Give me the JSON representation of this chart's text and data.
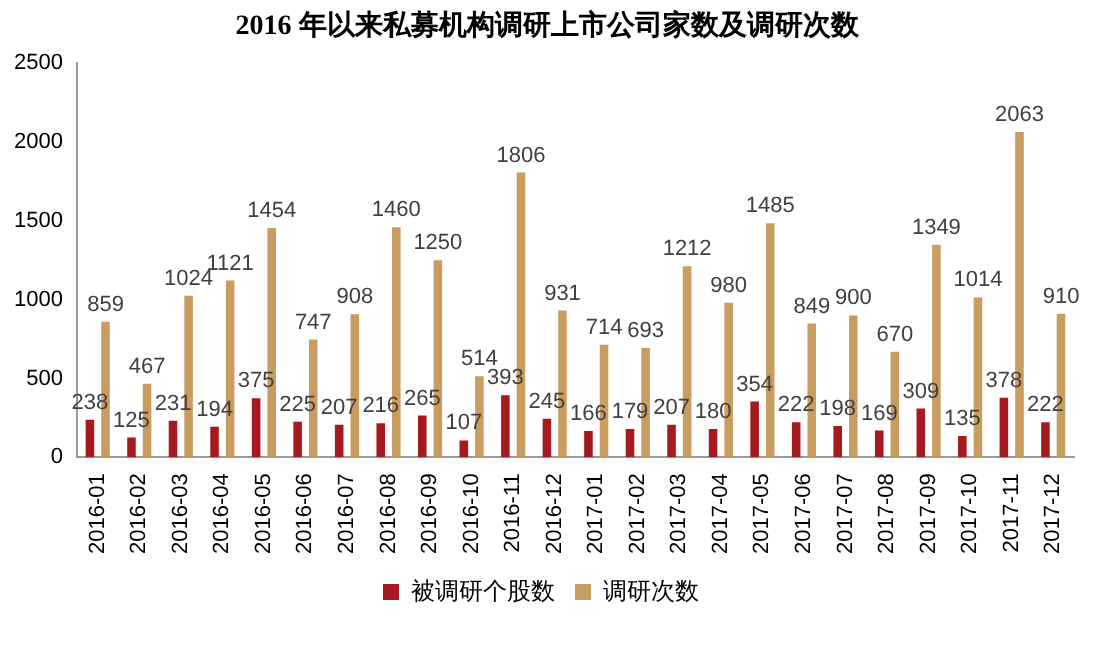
{
  "chart_data": {
    "type": "bar",
    "title": "2016 年以来私募机构调研上市公司家数及调研次数",
    "categories": [
      "2016-01",
      "2016-02",
      "2016-03",
      "2016-04",
      "2016-05",
      "2016-06",
      "2016-07",
      "2016-08",
      "2016-09",
      "2016-10",
      "2016-11",
      "2016-12",
      "2017-01",
      "2017-02",
      "2017-03",
      "2017-04",
      "2017-05",
      "2017-06",
      "2017-07",
      "2017-08",
      "2017-09",
      "2017-10",
      "2017-11",
      "2017-12"
    ],
    "series": [
      {
        "name": "被调研个股数",
        "color": "#a6191e",
        "values": [
          238,
          125,
          231,
          194,
          375,
          225,
          207,
          216,
          265,
          107,
          393,
          245,
          166,
          179,
          207,
          180,
          354,
          222,
          198,
          169,
          309,
          135,
          378,
          222
        ]
      },
      {
        "name": "调研次数",
        "color": "#c99c5f",
        "values": [
          859,
          467,
          1024,
          1121,
          1454,
          747,
          908,
          1460,
          1250,
          514,
          1806,
          931,
          714,
          693,
          1212,
          980,
          1485,
          849,
          900,
          670,
          1349,
          1014,
          2063,
          910
        ]
      }
    ],
    "ylim": [
      0,
      2500
    ],
    "yticks": [
      0,
      500,
      1000,
      1500,
      2000,
      2500
    ],
    "grid": false,
    "legend": "bottom",
    "data_labels": true
  }
}
